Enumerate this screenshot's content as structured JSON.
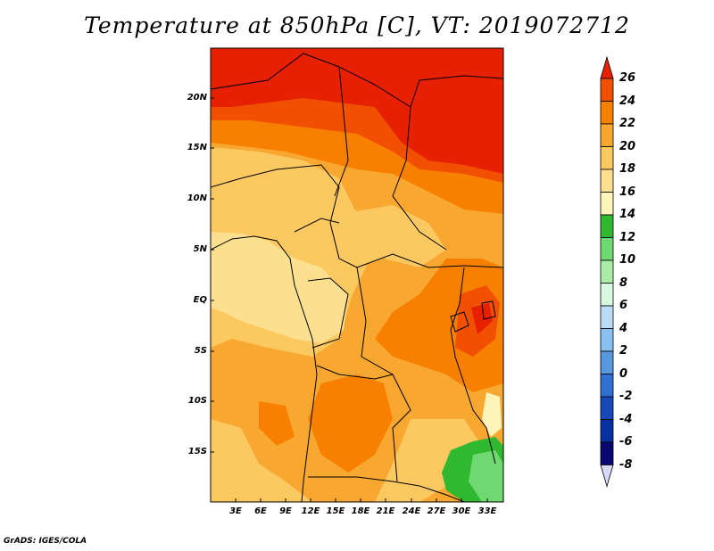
{
  "title": "Temperature at 850hPa [C], VT: 2019072712",
  "credit": "GrADS: IGES/COLA",
  "lat_ticks": [
    "20N",
    "15N",
    "10N",
    "5N",
    "EQ",
    "5S",
    "10S",
    "15S"
  ],
  "lon_ticks": [
    "3E",
    "6E",
    "9E",
    "12E",
    "15E",
    "18E",
    "21E",
    "24E",
    "27E",
    "30E",
    "33E"
  ],
  "colorbar": {
    "levels": [
      "26",
      "24",
      "22",
      "20",
      "18",
      "16",
      "14",
      "12",
      "10",
      "8",
      "6",
      "4",
      "2",
      "0",
      "-2",
      "-4",
      "-6",
      "-8"
    ],
    "colors": [
      "#e62000",
      "#f05000",
      "#f88000",
      "#f8a830",
      "#fcc860",
      "#fce090",
      "#fcf4b8",
      "#30b830",
      "#70d870",
      "#a8eca8",
      "#d8f8e0",
      "#b8dcf8",
      "#88c0f0",
      "#5898e0",
      "#3070d0",
      "#1848b8",
      "#0830a0",
      "#080870",
      "#d8d8f8"
    ]
  }
}
